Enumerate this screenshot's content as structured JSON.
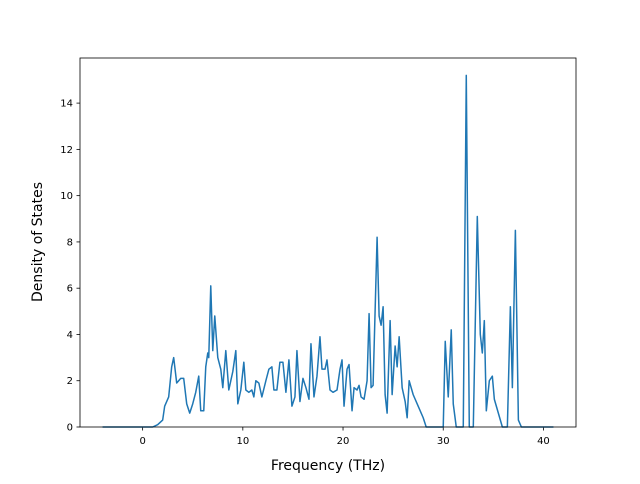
{
  "chart_data": {
    "type": "line",
    "xlabel": "Frequency (THz)",
    "ylabel": "Density of States",
    "color": "#1f77b4",
    "x": [
      -4,
      1,
      1.5,
      2,
      2.2,
      2.6,
      2.9,
      3.1,
      3.4,
      3.8,
      4.1,
      4.4,
      4.7,
      5.0,
      5.3,
      5.6,
      5.8,
      6.1,
      6.3,
      6.5,
      6.6,
      6.8,
      7.0,
      7.2,
      7.5,
      7.8,
      8.0,
      8.3,
      8.6,
      9.0,
      9.3,
      9.5,
      9.8,
      10.1,
      10.3,
      10.6,
      10.9,
      11.1,
      11.3,
      11.6,
      11.9,
      12.3,
      12.6,
      12.9,
      13.1,
      13.4,
      13.7,
      14.0,
      14.3,
      14.6,
      14.9,
      15.2,
      15.4,
      15.7,
      16.0,
      16.3,
      16.6,
      16.8,
      17.1,
      17.4,
      17.7,
      17.9,
      18.2,
      18.4,
      18.7,
      19.0,
      19.4,
      19.7,
      19.9,
      20.1,
      20.4,
      20.6,
      20.9,
      21.1,
      21.4,
      21.6,
      21.8,
      22.1,
      22.4,
      22.6,
      22.8,
      23.0,
      23.4,
      23.6,
      23.8,
      24.0,
      24.2,
      24.4,
      24.7,
      24.9,
      25.2,
      25.4,
      25.6,
      25.9,
      26.2,
      26.4,
      26.6,
      27.0,
      27.5,
      28.0,
      28.3,
      30.0,
      30.2,
      30.5,
      30.8,
      31.0,
      31.3,
      32.0,
      32.3,
      32.6,
      33.0,
      33.4,
      33.7,
      33.9,
      34.1,
      34.3,
      34.6,
      34.9,
      35.1,
      35.5,
      35.9,
      36.4,
      36.7,
      36.9,
      37.2,
      37.5,
      37.8,
      41
    ],
    "values": [
      0,
      0,
      0.1,
      0.3,
      0.9,
      1.3,
      2.6,
      3.0,
      1.9,
      2.1,
      2.1,
      1.0,
      0.6,
      1.0,
      1.5,
      2.2,
      0.7,
      0.7,
      2.6,
      3.2,
      3.0,
      6.1,
      3.3,
      4.8,
      3.0,
      2.5,
      1.7,
      3.3,
      1.6,
      2.4,
      3.3,
      1.0,
      1.6,
      2.8,
      1.6,
      1.5,
      1.6,
      1.3,
      2.0,
      1.9,
      1.3,
      2.0,
      2.5,
      2.6,
      1.6,
      1.6,
      2.8,
      2.8,
      1.5,
      2.9,
      0.9,
      1.3,
      3.3,
      1.1,
      2.1,
      1.7,
      1.2,
      3.6,
      1.3,
      2.2,
      3.9,
      2.5,
      2.5,
      2.9,
      1.6,
      1.5,
      1.6,
      2.5,
      2.9,
      0.9,
      2.5,
      2.7,
      0.7,
      1.7,
      1.6,
      1.8,
      1.3,
      1.2,
      2.0,
      4.9,
      1.7,
      1.8,
      8.2,
      4.8,
      4.4,
      5.2,
      1.4,
      0.6,
      4.6,
      1.4,
      3.5,
      2.6,
      3.9,
      1.7,
      1.1,
      0.4,
      2.0,
      1.4,
      0.9,
      0.4,
      0,
      0,
      3.7,
      1.3,
      4.2,
      1.0,
      0,
      0,
      15.2,
      0,
      0,
      9.1,
      4.0,
      3.2,
      4.6,
      0.7,
      2.0,
      2.2,
      1.2,
      0.6,
      0,
      0,
      5.2,
      1.7,
      8.5,
      0.3,
      0,
      0
    ],
    "xlim": [
      -6.25,
      43.25
    ],
    "ylim": [
      0,
      15.95
    ],
    "xticks": [
      0,
      10,
      20,
      30,
      40
    ],
    "yticks": [
      0,
      2,
      4,
      6,
      8,
      10,
      12,
      14
    ]
  }
}
